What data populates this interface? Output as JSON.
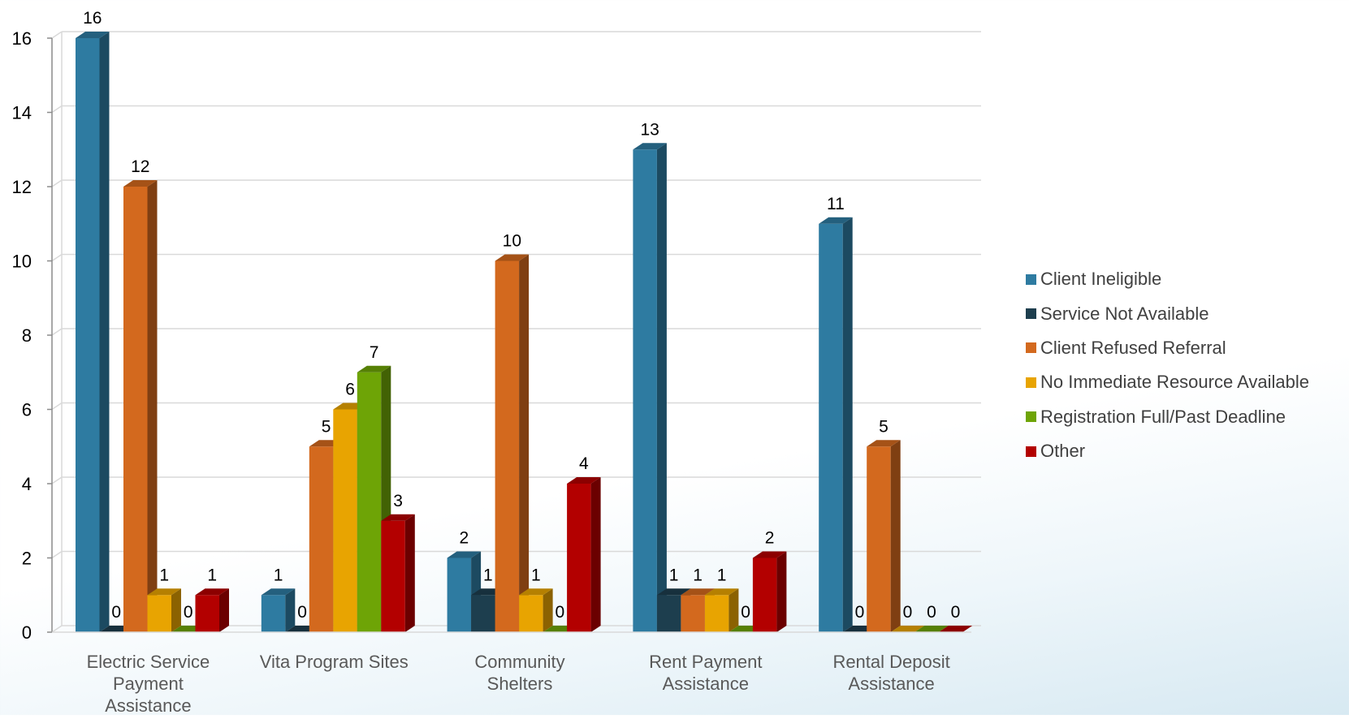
{
  "chart_data": {
    "type": "bar",
    "title": "",
    "xlabel": "",
    "ylabel": "",
    "ylim": [
      0,
      16
    ],
    "yticks": [
      "0",
      "2",
      "4",
      "6",
      "8",
      "10",
      "12",
      "14",
      "16"
    ],
    "grid": true,
    "legend_position": "right",
    "categories": [
      [
        "Electric Service",
        "Payment",
        "Assistance"
      ],
      [
        "Vita Program Sites"
      ],
      [
        "Community",
        "Shelters"
      ],
      [
        "Rent Payment",
        "Assistance"
      ],
      [
        "Rental Deposit",
        "Assistance"
      ]
    ],
    "series": [
      {
        "name": "Client Ineligible",
        "color": "#2E7BA1",
        "values": [
          16,
          1,
          2,
          13,
          11
        ]
      },
      {
        "name": "Service Not Available",
        "color": "#1D3E4E",
        "values": [
          0,
          0,
          1,
          1,
          0
        ]
      },
      {
        "name": "Client Refused Referral",
        "color": "#D3691E",
        "values": [
          12,
          5,
          10,
          1,
          5
        ]
      },
      {
        "name": "No Immediate Resource Available",
        "color": "#E8A401",
        "values": [
          1,
          6,
          1,
          1,
          0
        ]
      },
      {
        "name": "Registration Full/Past Deadline",
        "color": "#6EA406",
        "values": [
          0,
          7,
          0,
          0,
          0
        ]
      },
      {
        "name": "Other",
        "color": "#B30000",
        "values": [
          1,
          3,
          4,
          2,
          0
        ]
      }
    ]
  }
}
